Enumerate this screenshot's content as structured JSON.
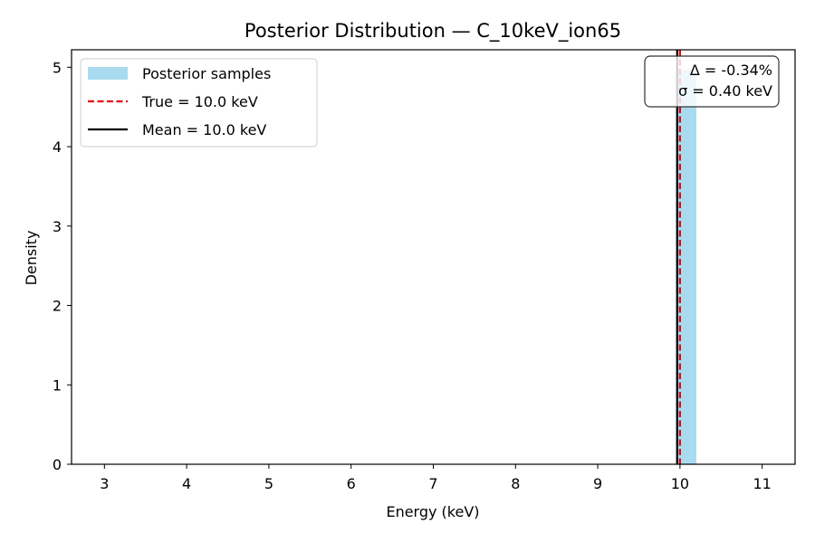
{
  "chart_data": {
    "type": "bar",
    "title": "Posterior Distribution — C_10keV_ion65",
    "xlabel": "Energy (keV)",
    "ylabel": "Density",
    "xlim": [
      2.6,
      11.4
    ],
    "ylim": [
      0,
      5.22
    ],
    "xticks": [
      3,
      4,
      5,
      6,
      7,
      8,
      9,
      10,
      11
    ],
    "yticks": [
      0,
      1,
      2,
      3,
      4,
      5
    ],
    "grid": false,
    "legend_position": "upper-left",
    "series": [
      {
        "name": "Posterior samples",
        "kind": "histogram",
        "color": "#a8dbef",
        "bins": [
          {
            "x0": 5.35,
            "x1": 5.6,
            "density": 0.004
          },
          {
            "x0": 9.95,
            "x1": 10.2,
            "density": 4.97
          }
        ]
      },
      {
        "name": "True = 10.0 keV",
        "kind": "vline",
        "x": 10.0,
        "color": "#e8000b",
        "style": "dashed"
      },
      {
        "name": "Mean = 10.0 keV",
        "kind": "vline",
        "x": 9.966,
        "color": "#000000",
        "style": "solid"
      }
    ],
    "annotation": {
      "lines": [
        "Δ = -0.34%",
        "σ = 0.40 keV"
      ],
      "position": "top-right"
    }
  }
}
